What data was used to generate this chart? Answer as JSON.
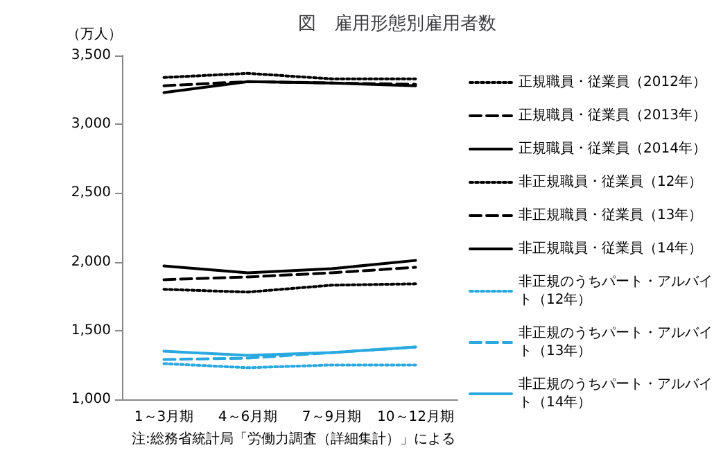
{
  "chart_data": {
    "type": "line",
    "title": "図　雇用形態別雇用者数",
    "ylabel": "（万人）",
    "annotations": [
      "注:総務省統計局「労働力調査（詳細集計）」による"
    ],
    "categories": [
      "1～3月期",
      "4～6月期",
      "7～9月期",
      "10～12月期"
    ],
    "ylim": [
      1000,
      3500
    ],
    "yticks": [
      {
        "value": 1000,
        "label": "1,000"
      },
      {
        "value": 1500,
        "label": "1,500"
      },
      {
        "value": 2000,
        "label": "2,000"
      },
      {
        "value": 2500,
        "label": "2,500"
      },
      {
        "value": 3000,
        "label": "3,000"
      },
      {
        "value": 3500,
        "label": "3,500"
      }
    ],
    "grid": false,
    "legend": "right",
    "marker": "none",
    "series": [
      {
        "name": "正規職員・従業員（2012年）",
        "color": "#000000",
        "line_style": "dotted",
        "values": [
          3340,
          3370,
          3330,
          3330
        ]
      },
      {
        "name": "正規職員・従業員（2013年）",
        "color": "#000000",
        "line_style": "dashed",
        "values": [
          3280,
          3310,
          3300,
          3290
        ]
      },
      {
        "name": "正規職員・従業員（2014年）",
        "color": "#000000",
        "line_style": "solid",
        "values": [
          3230,
          3310,
          3300,
          3280
        ]
      },
      {
        "name": "非正規職員・従業員（12年）",
        "color": "#000000",
        "line_style": "dotted",
        "values": [
          1800,
          1780,
          1830,
          1840
        ]
      },
      {
        "name": "非正規職員・従業員（13年）",
        "color": "#000000",
        "line_style": "dashed",
        "values": [
          1870,
          1890,
          1920,
          1960
        ]
      },
      {
        "name": "非正規職員・従業員（14年）",
        "color": "#000000",
        "line_style": "solid",
        "values": [
          1970,
          1920,
          1950,
          2010
        ]
      },
      {
        "name": "非正規のうちパート・アルバイト（12年）",
        "color": "#29a9e0",
        "line_style": "dotted",
        "values": [
          1260,
          1230,
          1250,
          1250
        ]
      },
      {
        "name": "非正規のうちパート・アルバイト（13年）",
        "color": "#29a9e0",
        "line_style": "dashed",
        "values": [
          1290,
          1300,
          1340,
          1380
        ]
      },
      {
        "name": "非正規のうちパート・アルバイト（14年）",
        "color": "#29a9e0",
        "line_style": "solid",
        "values": [
          1350,
          1320,
          1340,
          1380
        ]
      }
    ]
  }
}
